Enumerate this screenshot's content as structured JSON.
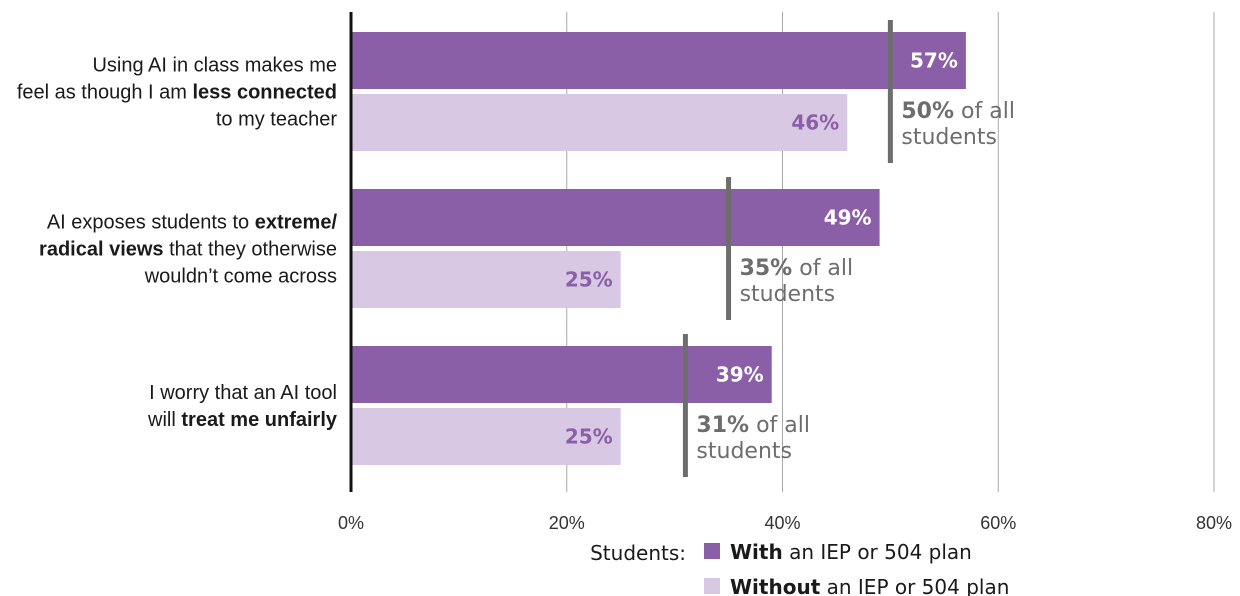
{
  "chart_data": {
    "type": "bar",
    "orientation": "horizontal",
    "categories": [
      {
        "lines": [
          [
            {
              "text": "Using AI in class makes me",
              "bold": false
            }
          ],
          [
            {
              "text": "feel as though I am ",
              "bold": false
            },
            {
              "text": "less connected",
              "bold": true
            }
          ],
          [
            {
              "text": "to my teacher",
              "bold": false
            }
          ]
        ]
      },
      {
        "lines": [
          [
            {
              "text": "AI exposes students to ",
              "bold": false
            },
            {
              "text": "extreme/",
              "bold": true
            }
          ],
          [
            {
              "text": "radical views",
              "bold": true
            },
            {
              "text": " that they otherwise",
              "bold": false
            }
          ],
          [
            {
              "text": "wouldn’t come across",
              "bold": false
            }
          ]
        ]
      },
      {
        "lines": [
          [
            {
              "text": "I worry that an AI tool",
              "bold": false
            }
          ],
          [
            {
              "text": "will ",
              "bold": false
            },
            {
              "text": "treat me unfairly",
              "bold": true
            }
          ]
        ]
      }
    ],
    "series": [
      {
        "values": [
          57,
          49,
          39
        ],
        "labels": [
          "57%",
          "49%",
          "39%"
        ],
        "color": "#8b5fa8",
        "label_color": "#ffffff"
      },
      {
        "values": [
          46,
          25,
          25
        ],
        "labels": [
          "46%",
          "25%",
          "25%"
        ],
        "color": "#d8c8e3",
        "label_color": "#8b5fa8"
      }
    ],
    "all_students": [
      {
        "value": 50,
        "bold": "50%",
        "rest": " of all",
        "line2": "students"
      },
      {
        "value": 35,
        "bold": "35%",
        "rest": " of all",
        "line2": "students"
      },
      {
        "value": 31,
        "bold": "31%",
        "rest": " of all",
        "line2": "students"
      }
    ],
    "xlim": [
      0,
      80
    ],
    "xticks": [
      0,
      20,
      40,
      60,
      80
    ],
    "xtick_labels": [
      "0%",
      "20%",
      "40%",
      "60%",
      "80%"
    ],
    "grid": true,
    "legend": {
      "position": "bottom",
      "prefix": "Students:",
      "entries": [
        {
          "bold": "With",
          "rest": " an IEP or 504 plan",
          "color": "#8b5fa8"
        },
        {
          "bold": "Without",
          "rest": " an IEP or 504 plan",
          "color": "#d8c8e3"
        }
      ]
    }
  }
}
